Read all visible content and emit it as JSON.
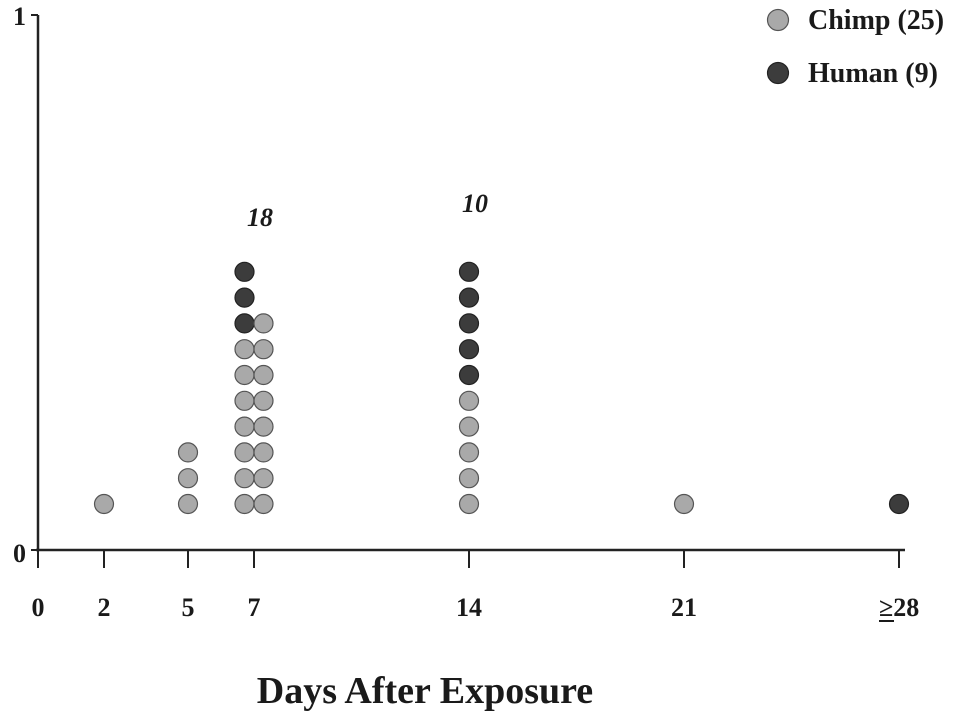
{
  "chart_data": {
    "type": "dot-plot",
    "title": "",
    "xlabel": "Days After Exposure",
    "ylabel": "",
    "y_ticks": [
      "0",
      "1"
    ],
    "ylim": [
      0,
      1
    ],
    "x_ticks": [
      {
        "day": 0,
        "label": "0"
      },
      {
        "day": 2,
        "label": "2"
      },
      {
        "day": 5,
        "label": "5"
      },
      {
        "day": 7,
        "label": "7"
      },
      {
        "day": 14,
        "label": "14"
      },
      {
        "day": 21,
        "label": "21"
      },
      {
        "day": 28,
        "label": "≥28"
      }
    ],
    "series": [
      {
        "name": "Chimp (25)",
        "color": "#a9a9a9"
      },
      {
        "name": "Human (9)",
        "color": "#3c3c3c"
      }
    ],
    "columns": [
      {
        "day": 2,
        "stacks": [
          {
            "chimp": 1,
            "human": 0
          }
        ]
      },
      {
        "day": 5,
        "stacks": [
          {
            "chimp": 3,
            "human": 0
          }
        ]
      },
      {
        "day": 7,
        "stacks": [
          {
            "chimp": 7,
            "human": 3
          },
          {
            "chimp": 8,
            "human": 0
          }
        ]
      },
      {
        "day": 14,
        "stacks": [
          {
            "chimp": 5,
            "human": 5
          }
        ]
      },
      {
        "day": 21,
        "stacks": [
          {
            "chimp": 1,
            "human": 0
          }
        ]
      },
      {
        "day": 28,
        "stacks": [
          {
            "chimp": 0,
            "human": 1
          }
        ]
      }
    ],
    "annotations": [
      {
        "day": 7,
        "text": "18"
      },
      {
        "day": 14,
        "text": "10"
      }
    ],
    "legend_position": "top-right"
  }
}
